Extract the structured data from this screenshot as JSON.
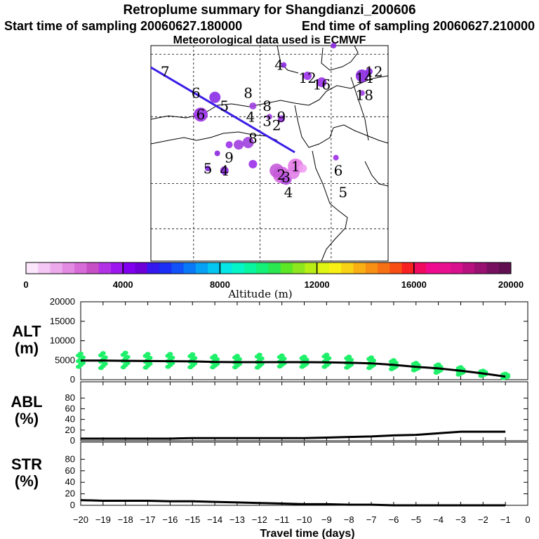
{
  "title": {
    "line1": "Retroplume summary for Shangdianzi_200606",
    "start": "Start time of sampling 20060627.180000",
    "end": "End time of sampling 20060627.210000",
    "met": "Meteorological data used is ECMWF"
  },
  "chart_data": {
    "type": "composite",
    "map": {
      "trajectory_color": "#3a1ee6",
      "day_labels": [
        {
          "t": "7",
          "lx": 0.06,
          "ly": 0.12
        },
        {
          "t": "6",
          "lx": 0.19,
          "ly": 0.22
        },
        {
          "t": "5",
          "lx": 0.31,
          "ly": 0.28
        },
        {
          "t": "4",
          "lx": 0.42,
          "ly": 0.33
        },
        {
          "t": "3",
          "lx": 0.49,
          "ly": 0.35
        },
        {
          "t": "2",
          "lx": 0.53,
          "ly": 0.37
        },
        {
          "t": "8",
          "lx": 0.49,
          "ly": 0.28
        },
        {
          "t": "1",
          "lx": 0.61,
          "ly": 0.56
        },
        {
          "t": "2",
          "lx": 0.55,
          "ly": 0.6
        },
        {
          "t": "3",
          "lx": 0.57,
          "ly": 0.61
        },
        {
          "t": "4",
          "lx": 0.58,
          "ly": 0.68
        },
        {
          "t": "5",
          "lx": 0.81,
          "ly": 0.68
        },
        {
          "t": "6",
          "lx": 0.79,
          "ly": 0.58
        },
        {
          "t": "9",
          "lx": 0.33,
          "ly": 0.52
        },
        {
          "t": "5",
          "lx": 0.24,
          "ly": 0.57
        },
        {
          "t": "4",
          "lx": 0.31,
          "ly": 0.58
        },
        {
          "t": "8",
          "lx": 0.41,
          "ly": 0.22
        },
        {
          "t": "4",
          "lx": 0.54,
          "ly": 0.09
        },
        {
          "t": "12",
          "lx": 0.66,
          "ly": 0.15
        },
        {
          "t": "16",
          "lx": 0.72,
          "ly": 0.18
        },
        {
          "t": "14",
          "lx": 0.9,
          "ly": 0.15
        },
        {
          "t": "12",
          "lx": 0.94,
          "ly": 0.12
        },
        {
          "t": "18",
          "lx": 0.9,
          "ly": 0.23
        },
        {
          "t": "6",
          "lx": 0.21,
          "ly": 0.32
        },
        {
          "t": "9",
          "lx": 0.55,
          "ly": 0.33
        },
        {
          "t": "8",
          "lx": 0.43,
          "ly": 0.43
        }
      ],
      "plume_dots": [
        {
          "lx": 0.61,
          "ly": 0.56,
          "r": 11,
          "c": "#e879e8"
        },
        {
          "lx": 0.55,
          "ly": 0.6,
          "r": 12,
          "c": "#d466e0"
        },
        {
          "lx": 0.53,
          "ly": 0.58,
          "r": 10,
          "c": "#c45ad8"
        },
        {
          "lx": 0.57,
          "ly": 0.62,
          "r": 8,
          "c": "#b44ce0"
        },
        {
          "lx": 0.41,
          "ly": 0.45,
          "r": 8,
          "c": "#a040e0"
        },
        {
          "lx": 0.37,
          "ly": 0.46,
          "r": 7,
          "c": "#a03de0"
        },
        {
          "lx": 0.33,
          "ly": 0.46,
          "r": 5,
          "c": "#9a30e8"
        },
        {
          "lx": 0.27,
          "ly": 0.24,
          "r": 8,
          "c": "#8a2ce8"
        },
        {
          "lx": 0.21,
          "ly": 0.32,
          "r": 10,
          "c": "#9a30e8"
        },
        {
          "lx": 0.43,
          "ly": 0.55,
          "r": 6,
          "c": "#9a30e8"
        },
        {
          "lx": 0.31,
          "ly": 0.58,
          "r": 6,
          "c": "#8a28e0"
        },
        {
          "lx": 0.24,
          "ly": 0.57,
          "r": 4,
          "c": "#7a20d8"
        },
        {
          "lx": 0.28,
          "ly": 0.5,
          "r": 4,
          "c": "#8a28e0"
        },
        {
          "lx": 0.43,
          "ly": 0.28,
          "r": 5,
          "c": "#a040e0"
        },
        {
          "lx": 0.55,
          "ly": 0.34,
          "r": 5,
          "c": "#9a30e8"
        },
        {
          "lx": 0.5,
          "ly": 0.33,
          "r": 4,
          "c": "#a040e0"
        },
        {
          "lx": 0.78,
          "ly": 0.52,
          "r": 4,
          "c": "#9a30e8"
        },
        {
          "lx": 0.66,
          "ly": 0.14,
          "r": 6,
          "c": "#9a30e8"
        },
        {
          "lx": 0.72,
          "ly": 0.17,
          "r": 7,
          "c": "#9a30e8"
        },
        {
          "lx": 0.89,
          "ly": 0.14,
          "r": 9,
          "c": "#8a28e0"
        },
        {
          "lx": 0.92,
          "ly": 0.12,
          "r": 5,
          "c": "#8a28e0"
        },
        {
          "lx": 0.89,
          "ly": 0.22,
          "r": 4,
          "c": "#a040e0"
        },
        {
          "lx": 0.56,
          "ly": 0.09,
          "r": 4,
          "c": "#8a28e0"
        },
        {
          "lx": 0.77,
          "ly": 0.0,
          "r": 4,
          "c": "#8a28e0"
        },
        {
          "lx": 0.64,
          "ly": 0.57,
          "r": 6,
          "c": "#f0a0f0"
        },
        {
          "lx": 0.6,
          "ly": 0.59,
          "r": 9,
          "c": "#e080e8"
        }
      ]
    },
    "colorbar": {
      "label": "Altitude (m)",
      "ticks": [
        0,
        4000,
        8000,
        12000,
        16000,
        20000
      ],
      "tick_labels": [
        "0",
        "4000",
        "8000",
        "12000",
        "16000",
        "20000"
      ],
      "colors": [
        "#fbe6fb",
        "#f4c7f4",
        "#ecaaec",
        "#e38ae3",
        "#d76bd7",
        "#c64fc6",
        "#b233e6",
        "#9d18f0",
        "#8100f0",
        "#6d00d8",
        "#3418ee",
        "#1a2ef5",
        "#1252f8",
        "#0a79f8",
        "#06a0f5",
        "#05c6f0",
        "#05e6e6",
        "#05f5c8",
        "#0af5a0",
        "#14f078",
        "#2ae650",
        "#5ce626",
        "#8ee61e",
        "#b8ee14",
        "#e0f514",
        "#f8f014",
        "#f8d214",
        "#f8b014",
        "#f89014",
        "#f87014",
        "#f84e14",
        "#f82020",
        "#f00a60",
        "#f00a90",
        "#e8108e",
        "#d8108e",
        "#b8107e",
        "#981070",
        "#781060",
        "#601050"
      ]
    },
    "panels": [
      {
        "name": "ALT",
        "ylabel": "ALT\n(m)",
        "ylabel_lines": [
          "ALT",
          "(m)"
        ],
        "ylim": [
          0,
          20000
        ],
        "yticks": [
          0,
          5000,
          10000,
          15000,
          20000
        ],
        "ytick_labels": [
          "0",
          "5000",
          "10000",
          "15000",
          "20000"
        ],
        "x": [
          -20,
          -19,
          -18,
          -17,
          -16,
          -15,
          -14,
          -13,
          -12,
          -11,
          -10,
          -9,
          -8,
          -7,
          -6,
          -5,
          -4,
          -3,
          -2,
          -1
        ],
        "mean": [
          4900,
          4900,
          4850,
          4800,
          4750,
          4700,
          4550,
          4500,
          4500,
          4500,
          4500,
          4450,
          4350,
          4200,
          3800,
          3300,
          2900,
          2300,
          1600,
          800
        ],
        "spread_low": [
          3300,
          3000,
          3200,
          3100,
          3300,
          3200,
          3200,
          3200,
          3100,
          3400,
          3300,
          3300,
          3100,
          3000,
          2700,
          2400,
          1800,
          1300,
          1000,
          400
        ],
        "spread_high": [
          6700,
          6800,
          6900,
          6600,
          6600,
          6500,
          6100,
          6100,
          6400,
          6200,
          5900,
          6400,
          5900,
          5700,
          5000,
          4300,
          3900,
          3200,
          2300,
          1500
        ],
        "point_color": "#1ff06a"
      },
      {
        "name": "ABL",
        "ylabel_lines": [
          "ABL",
          "(%)"
        ],
        "ylim": [
          0,
          100
        ],
        "yticks": [
          0,
          20,
          40,
          60,
          80
        ],
        "ytick_labels": [
          "0",
          "20",
          "40",
          "60",
          "80"
        ],
        "x": [
          -20,
          -19,
          -18,
          -17,
          -16,
          -15,
          -14,
          -13,
          -12,
          -11,
          -10,
          -9,
          -8,
          -7,
          -6,
          -5,
          -4,
          -3,
          -2,
          -1
        ],
        "values": [
          4,
          4,
          4,
          4,
          4,
          5,
          5,
          5,
          5,
          5,
          5,
          6,
          7,
          8,
          10,
          11,
          14,
          17,
          17,
          17
        ]
      },
      {
        "name": "STR",
        "ylabel_lines": [
          "STR",
          "(%)"
        ],
        "ylim": [
          0,
          100
        ],
        "yticks": [
          0,
          20,
          40,
          60,
          80
        ],
        "ytick_labels": [
          "0",
          "20",
          "40",
          "60",
          "80"
        ],
        "x": [
          -20,
          -19,
          -18,
          -17,
          -16,
          -15,
          -14,
          -13,
          -12,
          -11,
          -10,
          -9,
          -8,
          -7,
          -6,
          -5,
          -4,
          -3,
          -2,
          -1
        ],
        "values": [
          9,
          8,
          8,
          8,
          7,
          7,
          6,
          5,
          4,
          3,
          2,
          2,
          1,
          1,
          0,
          0,
          0,
          0,
          0,
          0
        ]
      }
    ],
    "xaxis": {
      "label": "Travel time (days)",
      "xlim": [
        -20,
        0
      ],
      "ticks": [
        -20,
        -19,
        -18,
        -17,
        -16,
        -15,
        -14,
        -13,
        -12,
        -11,
        -10,
        -9,
        -8,
        -7,
        -6,
        -5,
        -4,
        -3,
        -2,
        -1,
        0
      ],
      "tick_labels": [
        "−20",
        "−19",
        "−18",
        "−17",
        "−16",
        "−15",
        "−14",
        "−13",
        "−12",
        "−11",
        "−10",
        "−9",
        "−8",
        "−7",
        "−6",
        "−5",
        "−4",
        "−3",
        "−2",
        "−1",
        "0"
      ]
    }
  }
}
